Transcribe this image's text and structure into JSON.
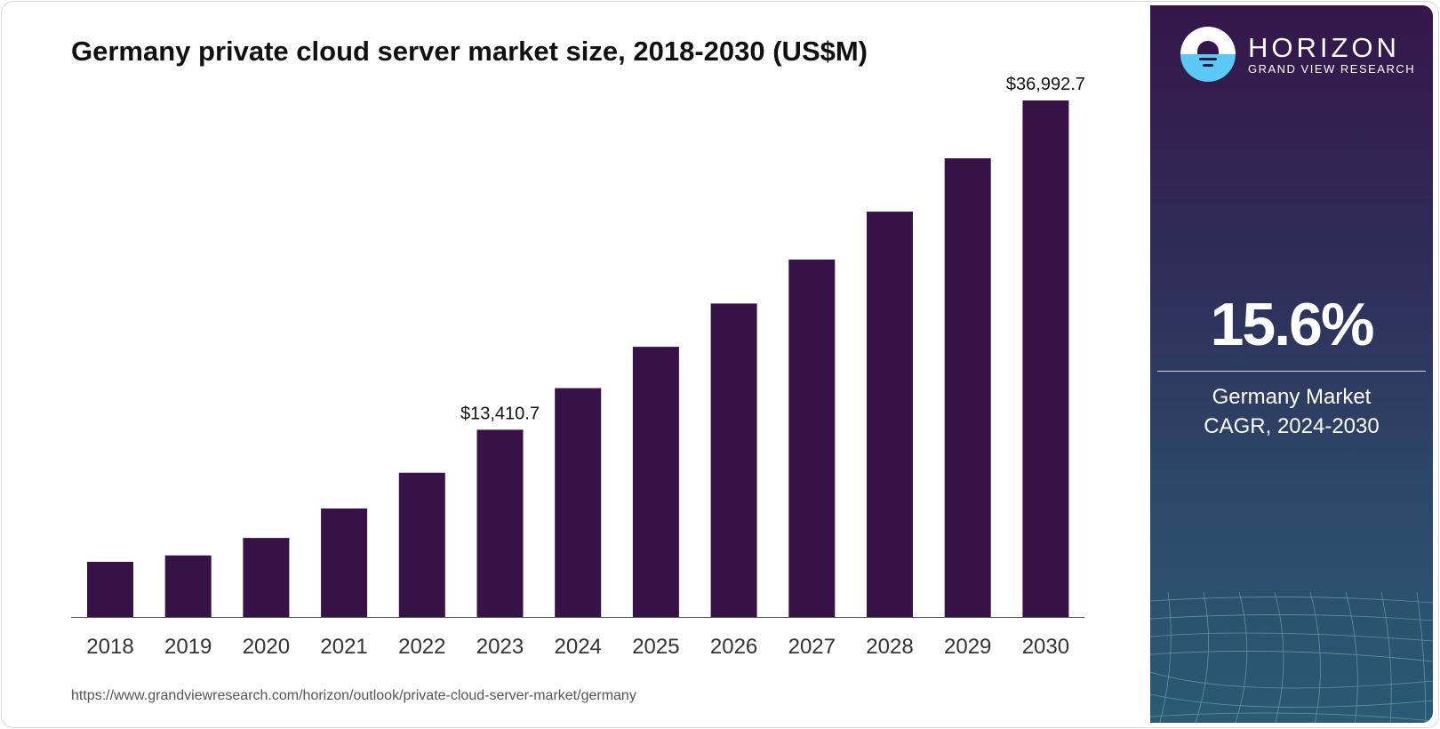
{
  "title": "Germany private cloud server market size, 2018-2030 (US$M)",
  "source_url": "https://www.grandviewresearch.com/horizon/outlook/private-cloud-server-market/germany",
  "brand": {
    "name": "HORIZON",
    "subtitle": "GRAND VIEW RESEARCH"
  },
  "cagr": {
    "value": "15.6%",
    "label_line1": "Germany Market",
    "label_line2": "CAGR, 2024-2030"
  },
  "colors": {
    "bar": "#371246"
  },
  "chart_data": {
    "type": "bar",
    "title": "Germany private cloud server market size, 2018-2030 (US$M)",
    "xlabel": "",
    "ylabel": "US$M",
    "categories": [
      "2018",
      "2019",
      "2020",
      "2021",
      "2022",
      "2023",
      "2024",
      "2025",
      "2026",
      "2027",
      "2028",
      "2029",
      "2030"
    ],
    "values": [
      3950,
      4410,
      5660,
      7770,
      10330,
      13410.7,
      16390,
      19350,
      22450,
      25600,
      29030,
      32850,
      36992.7
    ],
    "data_labels": {
      "2023": "$13,410.7",
      "2030": "$36,992.7"
    },
    "ylim": [
      0,
      36992.7
    ],
    "grid": false,
    "legend": "none"
  }
}
